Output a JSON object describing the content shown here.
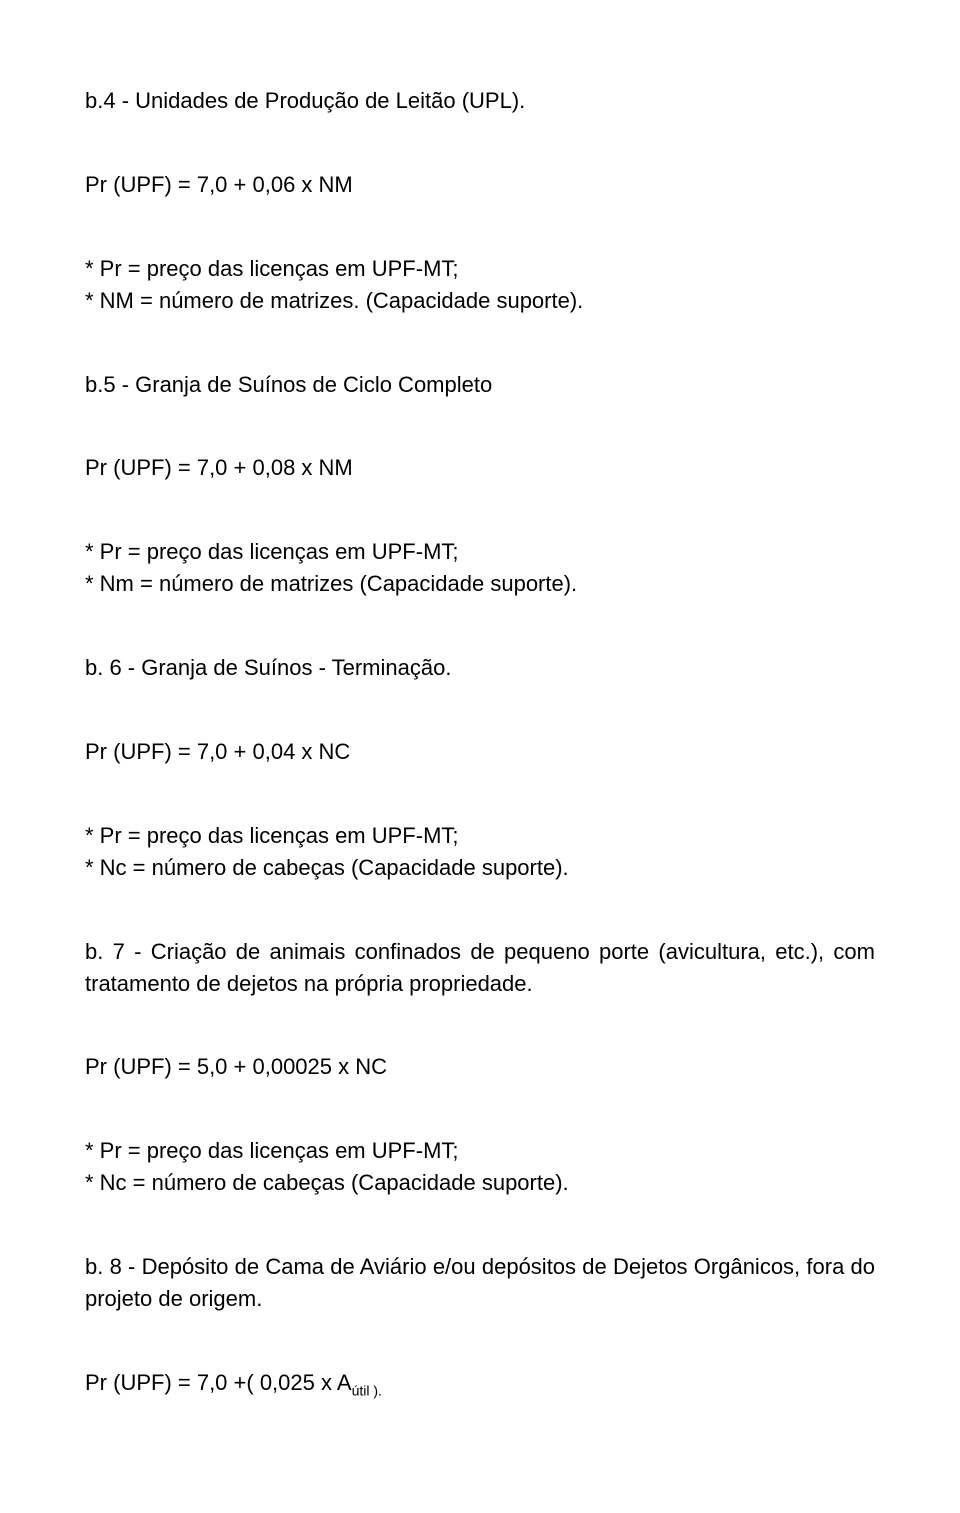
{
  "b4": {
    "title": "b.4 - Unidades de Produção de Leitão (UPL).",
    "formula": "Pr (UPF) = 7,0 + 0,06 x NM",
    "def1": "* Pr = preço das licenças em UPF-MT;",
    "def2": "* NM = número de matrizes. (Capacidade suporte)."
  },
  "b5": {
    "title": "b.5 - Granja de Suínos de Ciclo Completo",
    "formula": "Pr (UPF) = 7,0 + 0,08 x NM",
    "def1": "* Pr = preço das licenças em UPF-MT;",
    "def2": "* Nm = número de matrizes (Capacidade suporte)."
  },
  "b6": {
    "title": "b. 6 - Granja de Suínos - Terminação.",
    "formula": "Pr (UPF) = 7,0 + 0,04 x NC",
    "def1": "* Pr = preço das licenças em UPF-MT;",
    "def2": "* Nc = número de cabeças (Capacidade suporte)."
  },
  "b7": {
    "title": "b. 7 - Criação de animais confinados de pequeno porte (avicultura, etc.), com tratamento de dejetos na própria propriedade.",
    "formula": "Pr (UPF) = 5,0 + 0,00025 x NC",
    "def1": "* Pr = preço das licenças em UPF-MT;",
    "def2": "* Nc = número de cabeças (Capacidade suporte)."
  },
  "b8": {
    "title": "b. 8 - Depósito de Cama de Aviário e/ou depósitos de Dejetos Orgânicos, fora do projeto de origem.",
    "formula_prefix": "Pr (UPF) = 7,0 +( 0,025 x A",
    "formula_sub": "útil ).",
    "formula_suffix": ""
  }
}
